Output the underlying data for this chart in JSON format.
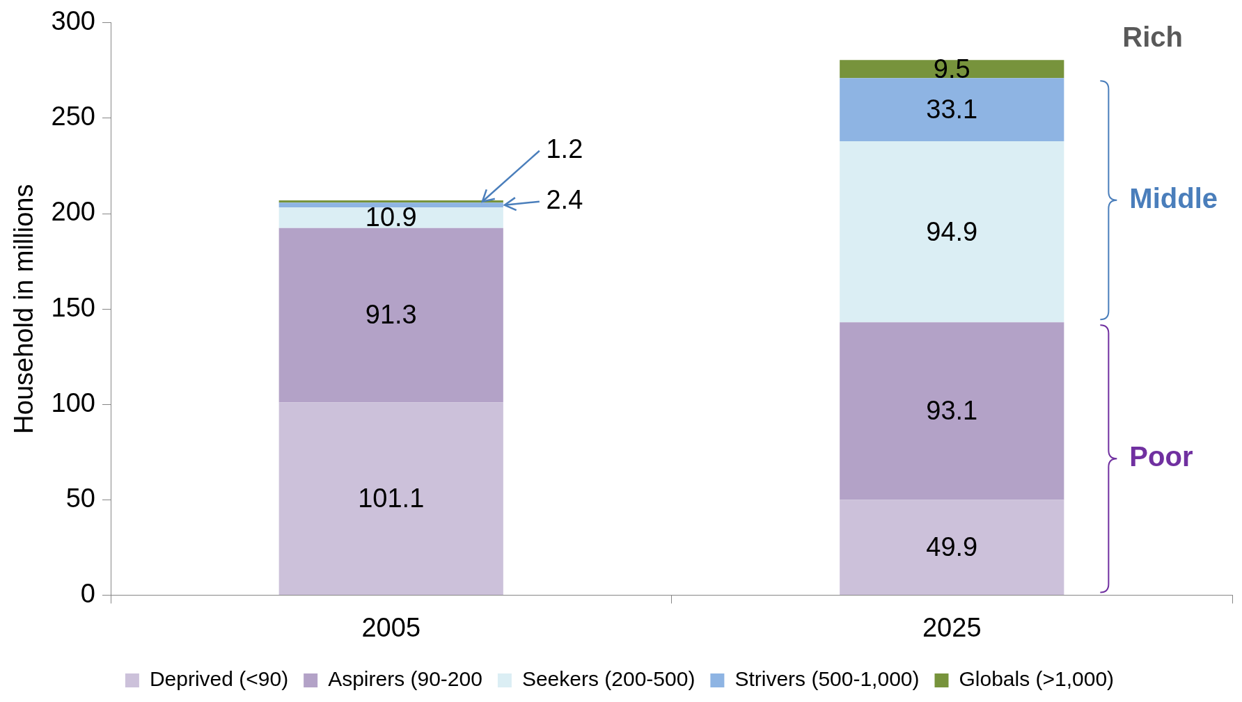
{
  "chart_data": {
    "type": "bar",
    "stacked": true,
    "ylabel": "Household in millions",
    "categories": [
      "2005",
      "2025"
    ],
    "series": [
      {
        "name": "Deprived (<90)",
        "color": "#ccc1da",
        "values": [
          101.1,
          49.9
        ]
      },
      {
        "name": "Aspirers (90-200",
        "color": "#b3a2c7",
        "values": [
          91.3,
          93.1
        ]
      },
      {
        "name": "Seekers (200-500)",
        "color": "#dbeef4",
        "values": [
          10.9,
          94.9
        ]
      },
      {
        "name": "Strivers (500-1,000)",
        "color": "#8eb4e3",
        "values": [
          2.4,
          33.1
        ]
      },
      {
        "name": "Globals (>1,000)",
        "color": "#77933c",
        "values": [
          1.2,
          9.5
        ]
      }
    ],
    "ylim": [
      0,
      300
    ],
    "yticks": [
      0,
      50,
      100,
      150,
      200,
      250,
      300
    ],
    "data_labels": true,
    "legend": "bottom",
    "grid": false,
    "annotations": [
      "Rich",
      "Middle",
      "Poor"
    ]
  }
}
